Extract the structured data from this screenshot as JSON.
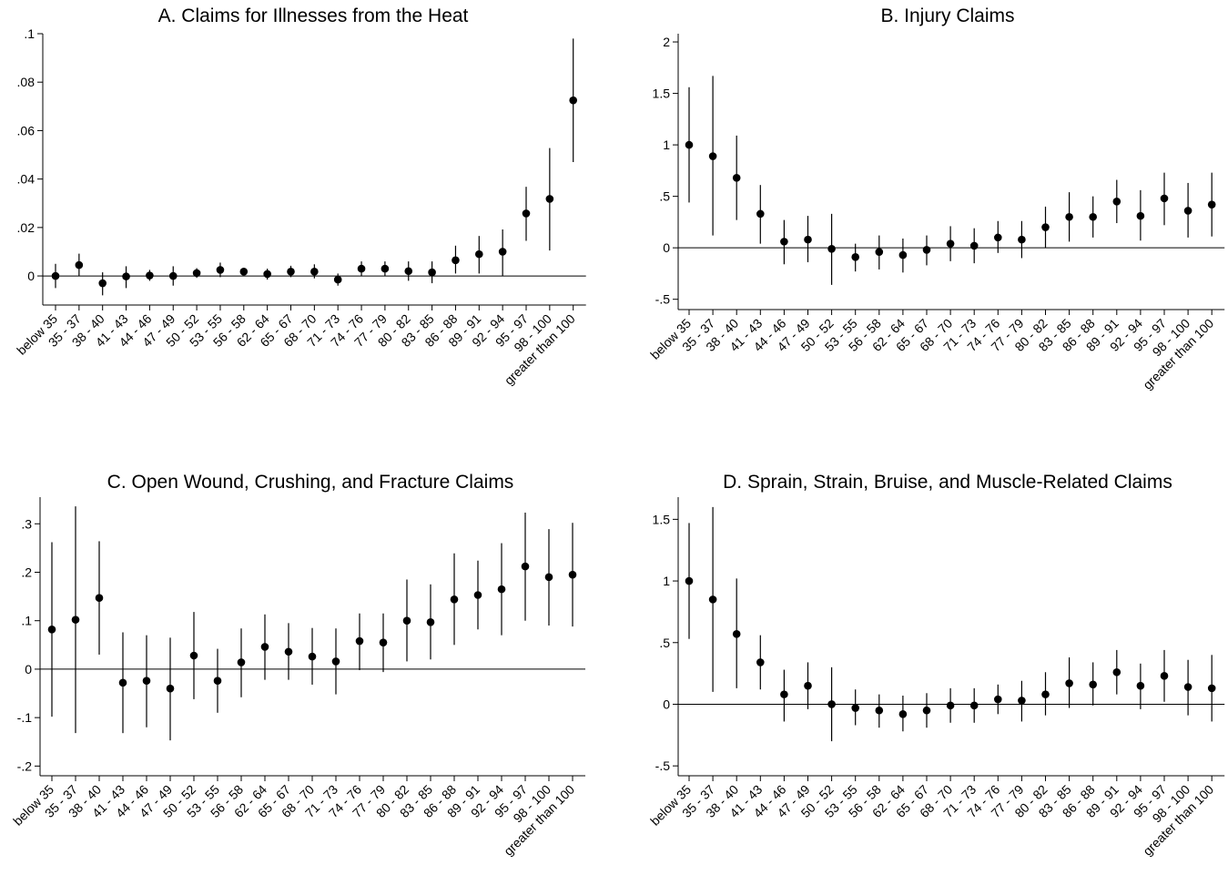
{
  "categories": [
    "below 35",
    "35 - 37",
    "38 - 40",
    "41 - 43",
    "44 - 46",
    "47 - 49",
    "50 - 52",
    "53 - 55",
    "56 - 58",
    "62 - 64",
    "65 - 67",
    "68 - 70",
    "71 - 73",
    "74 - 76",
    "77 - 79",
    "80 - 82",
    "83 - 85",
    "86 - 88",
    "89 - 91",
    "92 - 94",
    "95 - 97",
    "98 - 100",
    "greater than 100"
  ],
  "chart_data": [
    {
      "type": "scatter",
      "title": "A. Claims for Illnesses from the Heat",
      "ylim": [
        -0.012,
        0.1
      ],
      "yticks": [
        0,
        0.02,
        0.04,
        0.06,
        0.08,
        0.1
      ],
      "ytick_labels": [
        "0",
        ".02",
        ".04",
        ".06",
        ".08",
        ".1"
      ],
      "reference_line": 0,
      "point": [
        0.0,
        0.0045,
        -0.003,
        -0.0002,
        0.0002,
        0.0,
        0.0012,
        0.0025,
        0.0018,
        0.0008,
        0.0018,
        0.0018,
        -0.0015,
        0.003,
        0.003,
        0.002,
        0.0015,
        0.0065,
        0.009,
        0.01,
        0.0258,
        0.0318,
        0.0725
      ],
      "lower": [
        -0.005,
        0.0,
        -0.008,
        -0.005,
        -0.002,
        -0.004,
        -0.0008,
        -0.0005,
        0.0003,
        -0.0015,
        -0.0005,
        -0.001,
        -0.004,
        0.0,
        0.0,
        -0.002,
        -0.003,
        0.001,
        0.001,
        0.0,
        0.0145,
        0.0105,
        0.047
      ],
      "upper": [
        0.005,
        0.0092,
        0.0015,
        0.004,
        0.0025,
        0.004,
        0.0032,
        0.0055,
        0.0033,
        0.003,
        0.0042,
        0.0048,
        0.001,
        0.006,
        0.006,
        0.006,
        0.006,
        0.0125,
        0.0165,
        0.0192,
        0.0368,
        0.0528,
        0.098
      ]
    },
    {
      "type": "scatter",
      "title": "B. Injury Claims",
      "ylim": [
        -0.6,
        2.08
      ],
      "yticks": [
        -0.5,
        0,
        0.5,
        1,
        1.5,
        2
      ],
      "ytick_labels": [
        "-.5",
        "0",
        ".5",
        "1",
        "1.5",
        "2"
      ],
      "reference_line": 0,
      "point": [
        1.0,
        0.89,
        0.68,
        0.33,
        0.06,
        0.08,
        -0.01,
        -0.09,
        -0.04,
        -0.07,
        -0.02,
        0.04,
        0.02,
        0.1,
        0.08,
        0.2,
        0.3,
        0.3,
        0.45,
        0.31,
        0.48,
        0.36,
        0.42
      ],
      "lower": [
        0.44,
        0.12,
        0.27,
        0.04,
        -0.16,
        -0.14,
        -0.36,
        -0.23,
        -0.21,
        -0.24,
        -0.17,
        -0.13,
        -0.15,
        -0.05,
        -0.1,
        0.0,
        0.06,
        0.1,
        0.24,
        0.07,
        0.22,
        0.1,
        0.11
      ],
      "upper": [
        1.56,
        1.67,
        1.09,
        0.61,
        0.27,
        0.31,
        0.33,
        0.04,
        0.12,
        0.09,
        0.12,
        0.21,
        0.19,
        0.26,
        0.26,
        0.4,
        0.54,
        0.5,
        0.66,
        0.56,
        0.73,
        0.63,
        0.73
      ]
    },
    {
      "type": "scatter",
      "title": "C. Open Wound, Crushing, and Fracture Claims",
      "ylim": [
        -0.22,
        0.355
      ],
      "yticks": [
        -0.2,
        -0.1,
        0,
        0.1,
        0.2,
        0.3
      ],
      "ytick_labels": [
        "-.2",
        "-.1",
        "0",
        ".1",
        ".2",
        ".3"
      ],
      "reference_line": 0,
      "point": [
        0.082,
        0.102,
        0.147,
        -0.028,
        -0.024,
        -0.04,
        0.028,
        -0.024,
        0.014,
        0.046,
        0.036,
        0.026,
        0.016,
        0.058,
        0.055,
        0.1,
        0.097,
        0.144,
        0.153,
        0.165,
        0.212,
        0.19,
        0.195
      ],
      "lower": [
        -0.098,
        -0.132,
        0.03,
        -0.132,
        -0.12,
        -0.147,
        -0.062,
        -0.09,
        -0.058,
        -0.022,
        -0.022,
        -0.032,
        -0.052,
        -0.002,
        -0.006,
        0.016,
        0.02,
        0.05,
        0.082,
        0.07,
        0.1,
        0.09,
        0.088
      ],
      "upper": [
        0.262,
        0.336,
        0.264,
        0.076,
        0.07,
        0.065,
        0.118,
        0.042,
        0.084,
        0.113,
        0.095,
        0.085,
        0.084,
        0.115,
        0.115,
        0.185,
        0.175,
        0.239,
        0.224,
        0.26,
        0.323,
        0.289,
        0.302
      ]
    },
    {
      "type": "scatter",
      "title": "D. Sprain, Strain, Bruise, and Muscle-Related Claims",
      "ylim": [
        -0.58,
        1.68
      ],
      "yticks": [
        -0.5,
        0,
        0.5,
        1,
        1.5
      ],
      "ytick_labels": [
        "-.5",
        "0",
        ".5",
        "1",
        "1.5"
      ],
      "reference_line": 0,
      "point": [
        1.0,
        0.85,
        0.57,
        0.34,
        0.08,
        0.15,
        0.0,
        -0.03,
        -0.05,
        -0.08,
        -0.05,
        -0.01,
        -0.01,
        0.04,
        0.03,
        0.08,
        0.17,
        0.16,
        0.26,
        0.15,
        0.23,
        0.14,
        0.13
      ],
      "lower": [
        0.53,
        0.1,
        0.13,
        0.12,
        -0.14,
        -0.04,
        -0.3,
        -0.17,
        -0.19,
        -0.22,
        -0.19,
        -0.15,
        -0.15,
        -0.08,
        -0.14,
        -0.09,
        -0.03,
        -0.01,
        0.08,
        -0.04,
        0.02,
        -0.09,
        -0.14
      ],
      "upper": [
        1.47,
        1.6,
        1.02,
        0.56,
        0.28,
        0.34,
        0.3,
        0.12,
        0.08,
        0.07,
        0.09,
        0.13,
        0.13,
        0.16,
        0.19,
        0.26,
        0.38,
        0.34,
        0.44,
        0.33,
        0.44,
        0.36,
        0.4
      ]
    }
  ]
}
